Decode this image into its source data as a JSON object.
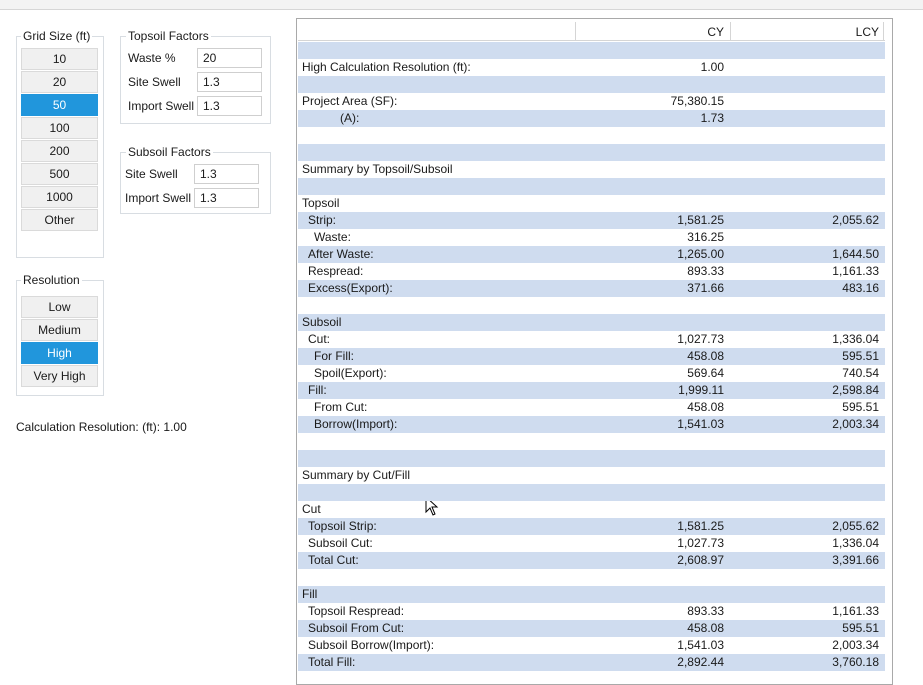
{
  "grid_size": {
    "title": "Grid Size (ft)",
    "options": [
      "10",
      "20",
      "50",
      "100",
      "200",
      "500",
      "1000",
      "Other"
    ],
    "selected": 2
  },
  "resolution": {
    "title": "Resolution",
    "options": [
      "Low",
      "Medium",
      "High",
      "Very High"
    ],
    "selected": 2
  },
  "calculation_resolution": "Calculation Resolution: (ft): 1.00",
  "topsoil_factors": {
    "title": "Topsoil Factors",
    "fields": [
      {
        "label": "Waste %",
        "value": "20"
      },
      {
        "label": "Site Swell",
        "value": "1.3"
      },
      {
        "label": "Import Swell",
        "value": "1.3"
      }
    ]
  },
  "subsoil_factors": {
    "title": "Subsoil Factors",
    "fields": [
      {
        "label": "Site Swell",
        "value": "1.3"
      },
      {
        "label": "Import Swell",
        "value": "1.3"
      }
    ]
  },
  "report": {
    "columns": [
      "CY",
      "LCY"
    ],
    "rows": [
      {
        "label": "High Calculation Resolution (ft):",
        "cy": "1.00"
      },
      {
        "label": "Project Area (SF):",
        "cy": "75,380.15"
      },
      {
        "label": "(A):",
        "cy": "1.73"
      },
      {
        "label": "Summary by Topsoil/Subsoil"
      },
      {
        "label": "Topsoil"
      },
      {
        "label": "Strip:",
        "cy": "1,581.25",
        "lcy": "2,055.62"
      },
      {
        "label": "Waste:",
        "cy": "316.25"
      },
      {
        "label": "After Waste:",
        "cy": "1,265.00",
        "lcy": "1,644.50"
      },
      {
        "label": "Respread:",
        "cy": "893.33",
        "lcy": "1,161.33"
      },
      {
        "label": "Excess(Export):",
        "cy": "371.66",
        "lcy": "483.16"
      },
      {
        "label": "Subsoil"
      },
      {
        "label": "Cut:",
        "cy": "1,027.73",
        "lcy": "1,336.04"
      },
      {
        "label": "For Fill:",
        "cy": "458.08",
        "lcy": "595.51"
      },
      {
        "label": "Spoil(Export):",
        "cy": "569.64",
        "lcy": "740.54"
      },
      {
        "label": "Fill:",
        "cy": "1,999.11",
        "lcy": "2,598.84"
      },
      {
        "label": "From Cut:",
        "cy": "458.08",
        "lcy": "595.51"
      },
      {
        "label": "Borrow(Import):",
        "cy": "1,541.03",
        "lcy": "2,003.34"
      },
      {
        "label": "Summary by Cut/Fill"
      },
      {
        "label": "Cut"
      },
      {
        "label": "Topsoil Strip:",
        "cy": "1,581.25",
        "lcy": "2,055.62"
      },
      {
        "label": "Subsoil Cut:",
        "cy": "1,027.73",
        "lcy": "1,336.04"
      },
      {
        "label": "Total Cut:",
        "cy": "2,608.97",
        "lcy": "3,391.66"
      },
      {
        "label": "Fill"
      },
      {
        "label": "Topsoil Respread:",
        "cy": "893.33",
        "lcy": "1,161.33"
      },
      {
        "label": "Subsoil From Cut:",
        "cy": "458.08",
        "lcy": "595.51"
      },
      {
        "label": "Subsoil Borrow(Import):",
        "cy": "1,541.03",
        "lcy": "2,003.34"
      },
      {
        "label": "Total Fill:",
        "cy": "2,892.44",
        "lcy": "3,760.18"
      }
    ]
  }
}
